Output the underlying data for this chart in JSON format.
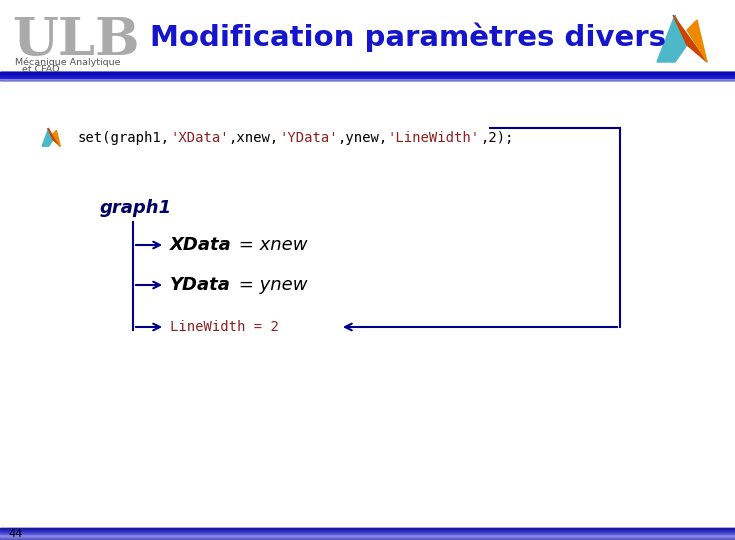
{
  "title": "Modification paramètres divers",
  "subtitle1": "Mécanique Analytique",
  "subtitle2": "et CFAO",
  "header_blue": "#1515CC",
  "bg_color": "#FFFFFF",
  "page_number": "44",
  "arrow_color": "#00008B",
  "code_segments": [
    [
      "set(graph1,",
      "black"
    ],
    [
      "'XData'",
      "#8B2222"
    ],
    [
      ",xnew,",
      "black"
    ],
    [
      "'YData'",
      "#8B2222"
    ],
    [
      ",ynew,",
      "black"
    ],
    [
      "'LineWidth'",
      "#8B2222"
    ],
    [
      ",2);",
      "black"
    ]
  ],
  "graph_label": "graph1",
  "xdata_bold": "XData",
  "xdata_val": " = xnew",
  "ydata_bold": "YData",
  "ydata_val": " = ynew",
  "linewidth_text": "LineWidth = 2"
}
